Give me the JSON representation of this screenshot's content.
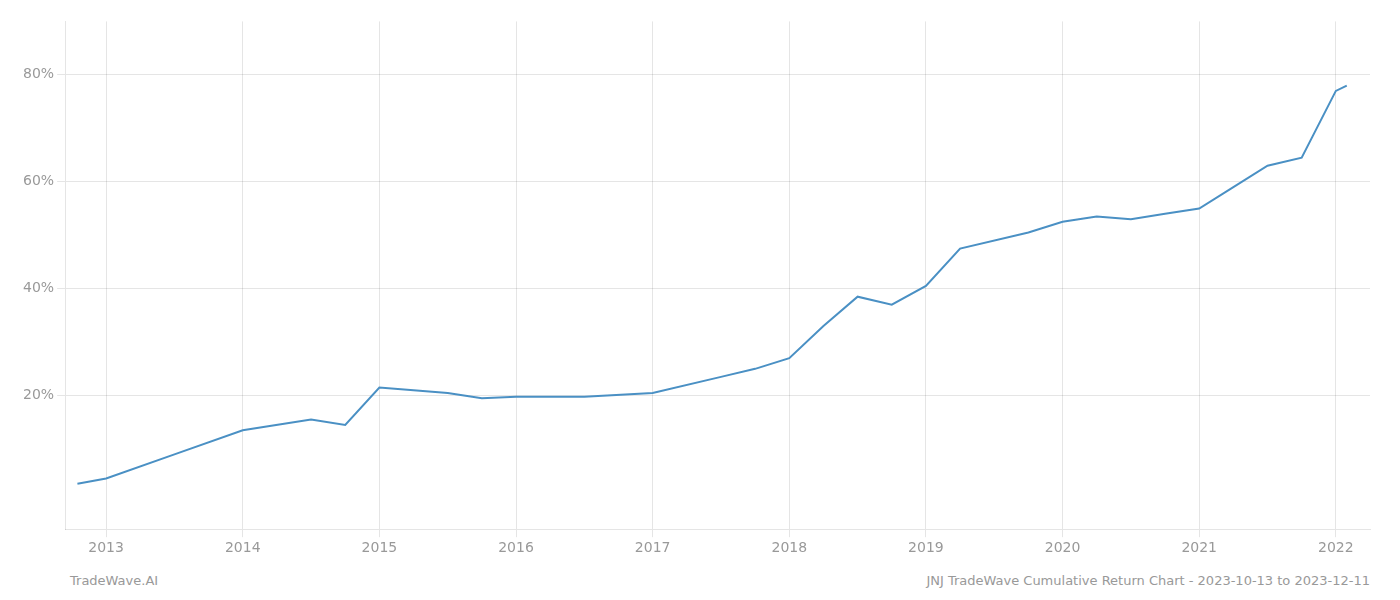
{
  "chart_data": {
    "type": "line",
    "annotations": [
      "TradeWave.AI",
      "JNJ TradeWave Cumulative Return Chart - 2023-10-13 to 2023-12-11"
    ],
    "x": [
      2012.79,
      2013.0,
      2013.5,
      2014.0,
      2014.5,
      2014.75,
      2015.0,
      2015.25,
      2015.5,
      2015.75,
      2016.0,
      2016.5,
      2017.0,
      2017.5,
      2017.75,
      2018.0,
      2018.25,
      2018.5,
      2018.75,
      2019.0,
      2019.25,
      2019.75,
      2020.0,
      2020.25,
      2020.5,
      2020.75,
      2021.0,
      2021.25,
      2021.5,
      2021.75,
      2022.0,
      2022.08
    ],
    "values": [
      3.5,
      4.5,
      9.0,
      13.5,
      15.5,
      14.5,
      21.5,
      21.0,
      20.5,
      19.5,
      19.8,
      19.8,
      20.5,
      23.5,
      25.0,
      27.0,
      33.0,
      38.5,
      37.0,
      40.5,
      47.5,
      50.5,
      52.5,
      53.5,
      53.0,
      54.0,
      55.0,
      59.0,
      63.0,
      64.5,
      77.0,
      78.0
    ],
    "color": "#4a90c4",
    "xlim": [
      2012.7,
      2022.25
    ],
    "xticks": [
      2013,
      2014,
      2015,
      2016,
      2017,
      2018,
      2019,
      2020,
      2021,
      2022
    ],
    "ylim": [
      -5,
      90
    ],
    "yticks": [
      {
        "value": 20,
        "label": "20%"
      },
      {
        "value": 40,
        "label": "40%"
      },
      {
        "value": 60,
        "label": "60%"
      },
      {
        "value": 80,
        "label": "80%"
      }
    ],
    "grid": true
  }
}
